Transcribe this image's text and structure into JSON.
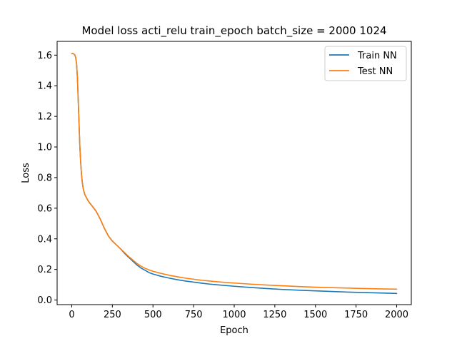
{
  "chart_data": {
    "type": "line",
    "title": "Model loss acti_relu train_epoch batch_size = 2000 1024",
    "xlabel": "Epoch",
    "ylabel": "Loss",
    "xlim": [
      -90,
      2090
    ],
    "ylim": [
      -0.03,
      1.69
    ],
    "xticks": [
      0,
      250,
      500,
      750,
      1000,
      1250,
      1500,
      1750,
      2000
    ],
    "xtick_labels": [
      "0",
      "250",
      "500",
      "750",
      "1000",
      "1250",
      "1500",
      "1750",
      "2000"
    ],
    "yticks": [
      0.0,
      0.2,
      0.4,
      0.6,
      0.8,
      1.0,
      1.2,
      1.4,
      1.6
    ],
    "ytick_labels": [
      "0.0",
      "0.2",
      "0.4",
      "0.6",
      "0.8",
      "1.0",
      "1.2",
      "1.4",
      "1.6"
    ],
    "grid": false,
    "legend_position": "top-right",
    "series": [
      {
        "name": "Train NN",
        "color": "#1f77b4",
        "x": [
          0,
          10,
          20,
          25,
          30,
          35,
          40,
          45,
          50,
          55,
          60,
          65,
          70,
          75,
          80,
          90,
          100,
          110,
          125,
          150,
          175,
          200,
          225,
          250,
          275,
          300,
          325,
          350,
          375,
          400,
          425,
          450,
          475,
          500,
          550,
          600,
          650,
          700,
          750,
          800,
          850,
          900,
          1000,
          1100,
          1200,
          1300,
          1400,
          1500,
          1600,
          1700,
          1800,
          1900,
          2000
        ],
        "values": [
          1.61,
          1.61,
          1.6,
          1.58,
          1.54,
          1.45,
          1.3,
          1.15,
          1.0,
          0.9,
          0.82,
          0.77,
          0.73,
          0.71,
          0.69,
          0.67,
          0.65,
          0.635,
          0.615,
          0.58,
          0.53,
          0.47,
          0.42,
          0.385,
          0.36,
          0.335,
          0.305,
          0.28,
          0.255,
          0.23,
          0.21,
          0.195,
          0.18,
          0.17,
          0.155,
          0.143,
          0.133,
          0.124,
          0.117,
          0.11,
          0.104,
          0.099,
          0.09,
          0.082,
          0.075,
          0.069,
          0.064,
          0.06,
          0.056,
          0.052,
          0.049,
          0.046,
          0.043
        ]
      },
      {
        "name": "Test NN",
        "color": "#ff7f0e",
        "x": [
          0,
          10,
          20,
          25,
          30,
          35,
          40,
          45,
          50,
          55,
          60,
          65,
          70,
          75,
          80,
          90,
          100,
          110,
          125,
          150,
          175,
          200,
          225,
          250,
          275,
          300,
          325,
          350,
          375,
          400,
          425,
          450,
          475,
          500,
          550,
          600,
          650,
          700,
          750,
          800,
          850,
          900,
          1000,
          1100,
          1200,
          1300,
          1400,
          1500,
          1600,
          1700,
          1800,
          1900,
          2000
        ],
        "values": [
          1.61,
          1.61,
          1.6,
          1.58,
          1.54,
          1.45,
          1.3,
          1.15,
          1.0,
          0.9,
          0.82,
          0.77,
          0.73,
          0.71,
          0.69,
          0.67,
          0.65,
          0.635,
          0.615,
          0.58,
          0.53,
          0.47,
          0.42,
          0.385,
          0.36,
          0.335,
          0.31,
          0.285,
          0.262,
          0.24,
          0.222,
          0.208,
          0.197,
          0.188,
          0.174,
          0.162,
          0.152,
          0.143,
          0.136,
          0.129,
          0.124,
          0.119,
          0.111,
          0.104,
          0.098,
          0.093,
          0.088,
          0.084,
          0.081,
          0.078,
          0.075,
          0.073,
          0.071
        ]
      }
    ]
  }
}
